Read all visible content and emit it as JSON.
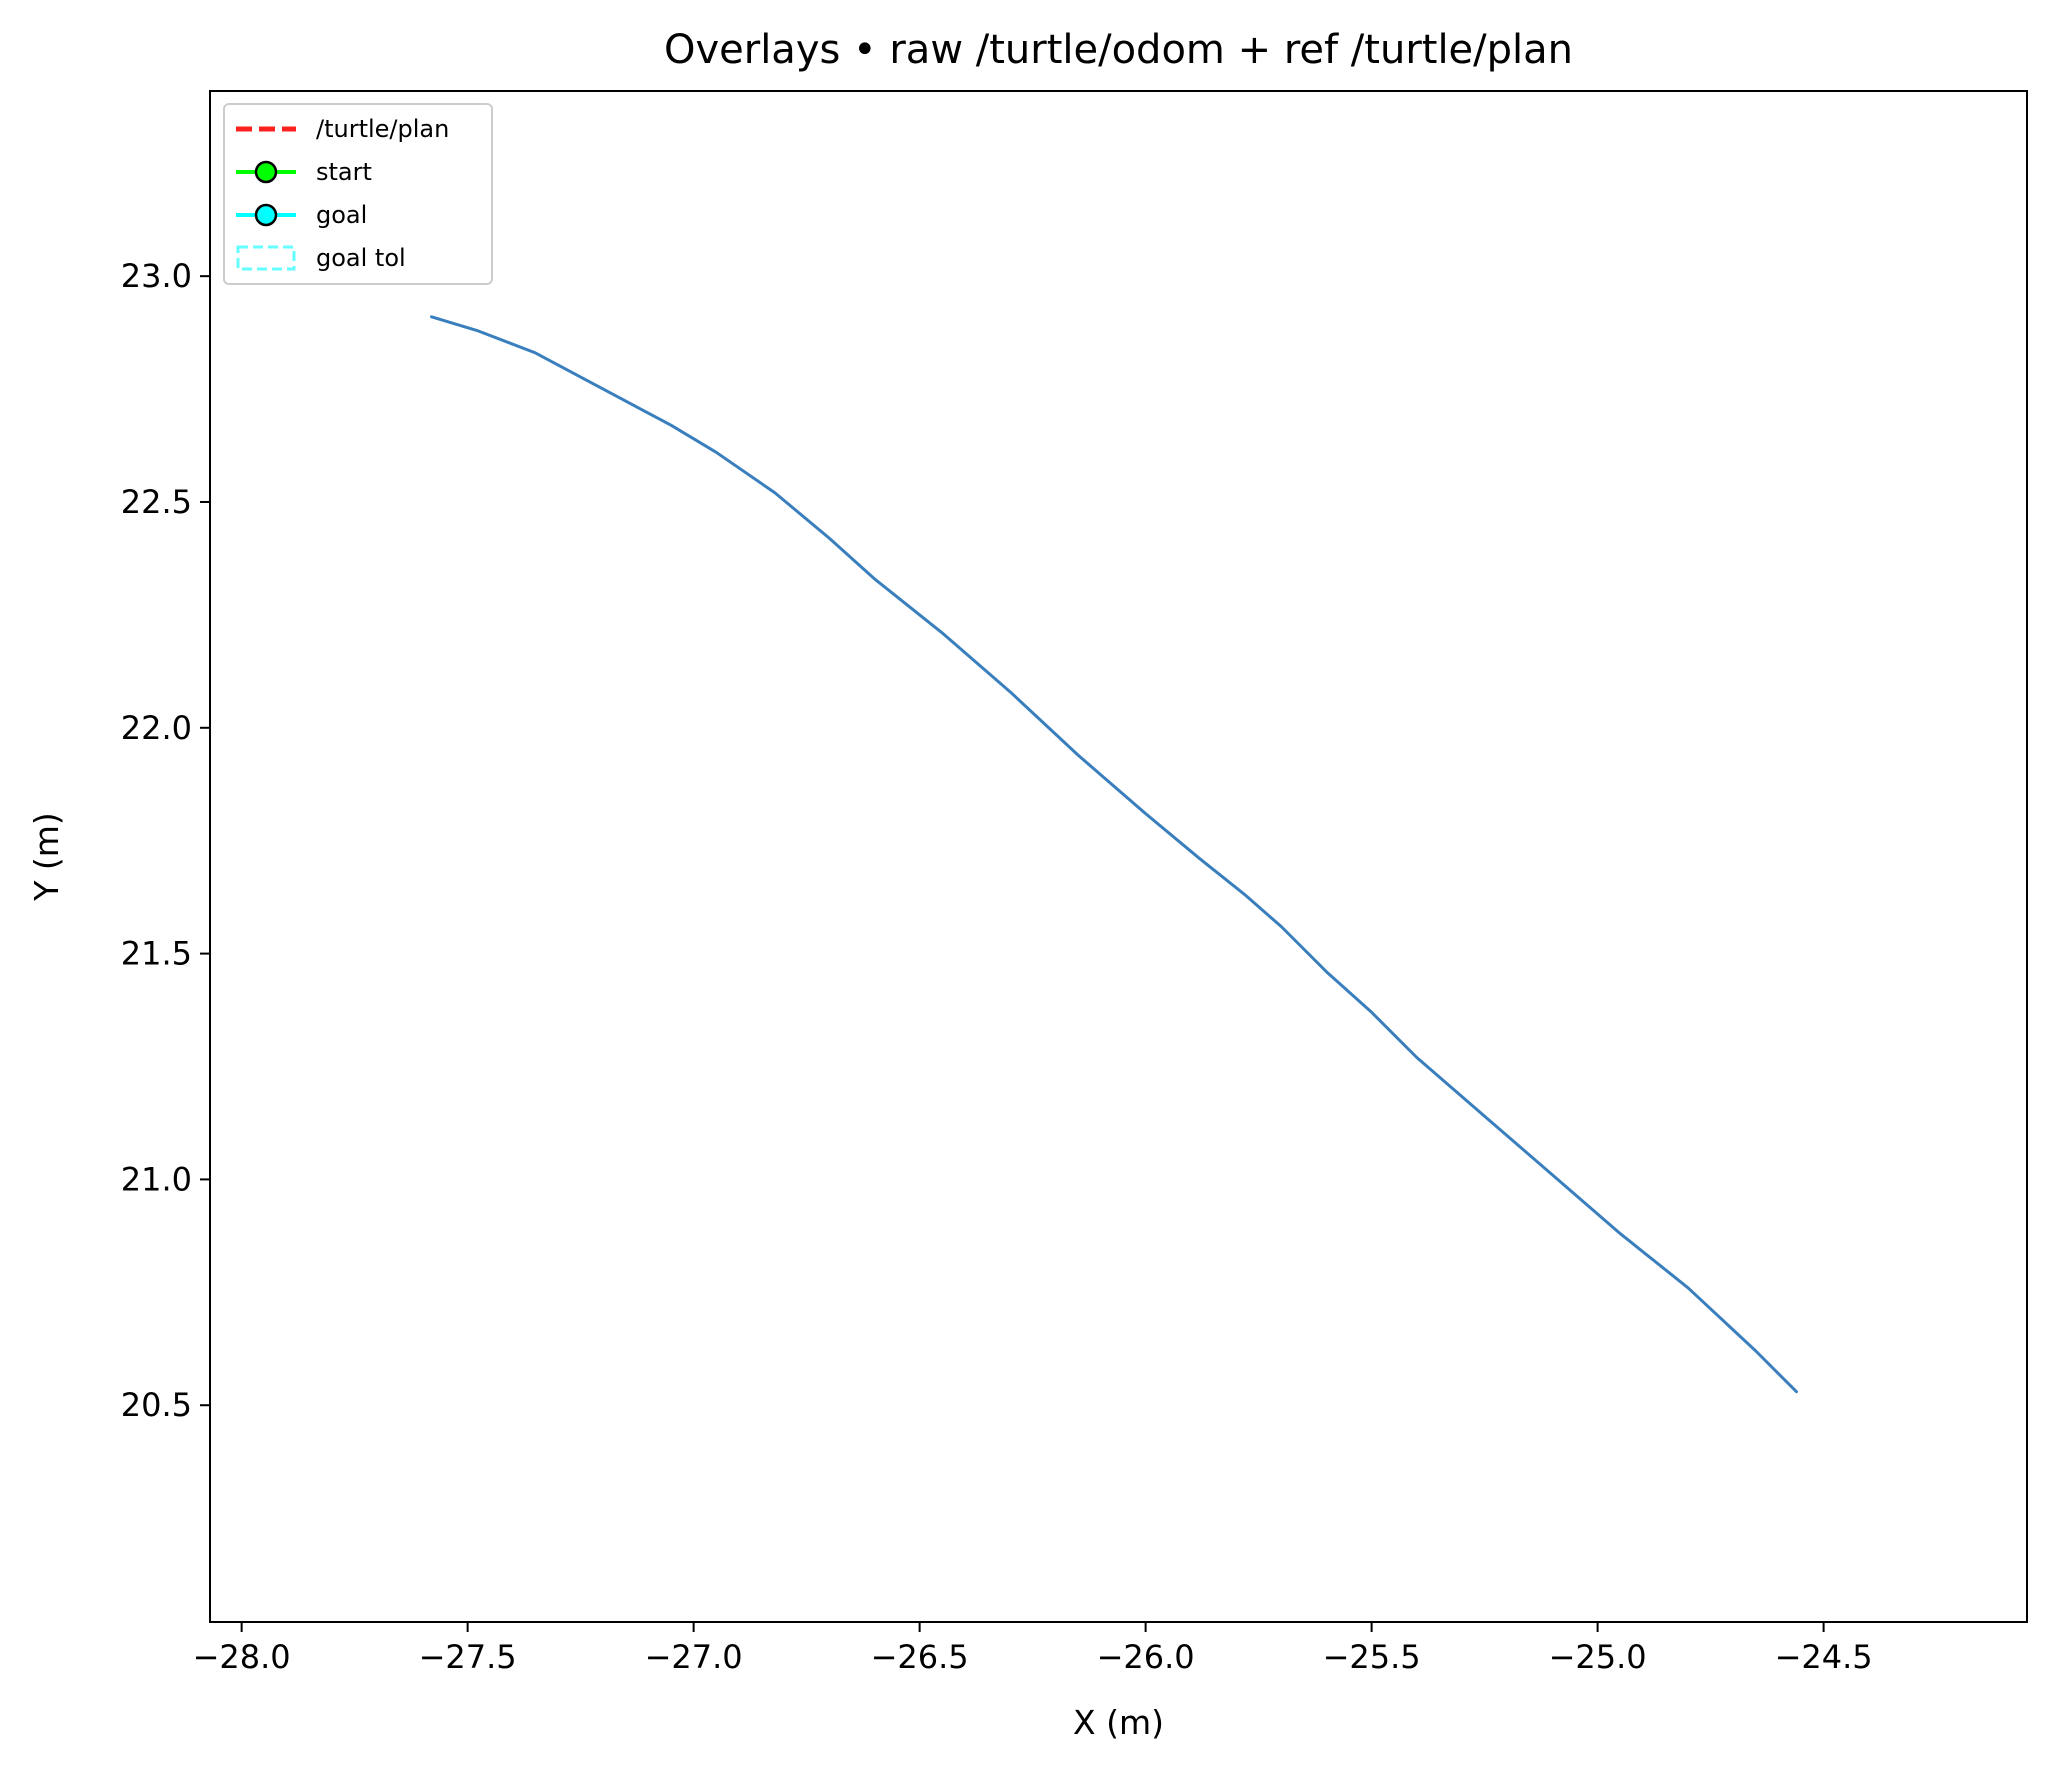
{
  "chart_data": {
    "type": "line",
    "title": "Overlays • raw /turtle/odom + ref /turtle/plan",
    "xlabel": "X (m)",
    "ylabel": "Y (m)",
    "xlim": [
      -28.07,
      -24.05
    ],
    "ylim": [
      20.02,
      23.41
    ],
    "x_ticks": [
      -28.0,
      -27.5,
      -27.0,
      -26.5,
      -26.0,
      -25.5,
      -25.0,
      -24.5
    ],
    "x_tick_labels": [
      "−28.0",
      "−27.5",
      "−27.0",
      "−26.5",
      "−26.0",
      "−25.5",
      "−25.0",
      "−24.5"
    ],
    "y_ticks": [
      20.5,
      21.0,
      21.5,
      22.0,
      22.5,
      23.0
    ],
    "y_tick_labels": [
      "20.5",
      "21.0",
      "21.5",
      "22.0",
      "22.5",
      "23.0"
    ],
    "grid": false,
    "legend_position": "upper-left",
    "legend": [
      {
        "label": "/turtle/plan",
        "style": "dashed-line",
        "color": "#ff2020"
      },
      {
        "label": "start",
        "style": "line-marker",
        "color": "#00ff00"
      },
      {
        "label": "goal",
        "style": "line-marker",
        "color": "#00ffff"
      },
      {
        "label": "goal tol",
        "style": "dashed-box",
        "color": "#66ffff"
      }
    ],
    "series": [
      {
        "color": "#3a7fbd",
        "x": [
          -27.58,
          -27.48,
          -27.35,
          -27.2,
          -27.05,
          -26.95,
          -26.82,
          -26.7,
          -26.6,
          -26.45,
          -26.3,
          -26.15,
          -26.0,
          -25.88,
          -25.78,
          -25.7,
          -25.6,
          -25.5,
          -25.4,
          -25.25,
          -25.1,
          -24.95,
          -24.8,
          -24.65,
          -24.56
        ],
        "y": [
          22.91,
          22.88,
          22.83,
          22.75,
          22.67,
          22.61,
          22.52,
          22.42,
          22.33,
          22.21,
          22.08,
          21.94,
          21.81,
          21.71,
          21.63,
          21.56,
          21.46,
          21.37,
          21.27,
          21.14,
          21.01,
          20.88,
          20.76,
          20.62,
          20.53
        ]
      }
    ]
  }
}
